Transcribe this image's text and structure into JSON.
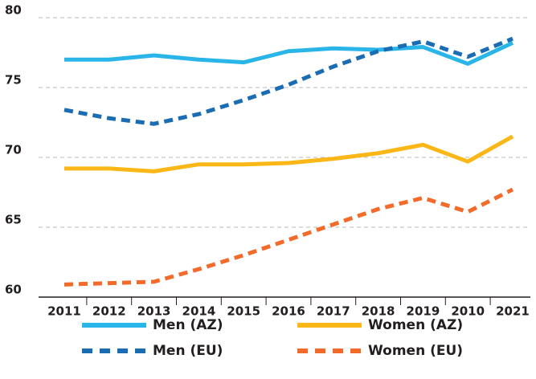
{
  "chart_data": {
    "type": "line",
    "categories": [
      "2011",
      "2012",
      "2013",
      "2014",
      "2015",
      "2016",
      "2017",
      "2018",
      "2019",
      "2010",
      "2021"
    ],
    "series": [
      {
        "name": "Men (AZ)",
        "color": "#29b5e8",
        "dashed": false,
        "values": [
          77.0,
          77.0,
          77.3,
          77.0,
          76.8,
          77.6,
          77.8,
          77.7,
          77.9,
          76.7,
          78.2
        ]
      },
      {
        "name": "Women (AZ)",
        "color": "#fbb617",
        "dashed": false,
        "values": [
          69.2,
          69.2,
          69.0,
          69.5,
          69.5,
          69.6,
          69.9,
          70.3,
          70.9,
          69.7,
          71.5
        ]
      },
      {
        "name": "Men (EU)",
        "color": "#1b6db3",
        "dashed": true,
        "values": [
          73.4,
          72.8,
          72.4,
          73.1,
          74.1,
          75.2,
          76.5,
          77.6,
          78.3,
          77.2,
          78.5
        ]
      },
      {
        "name": "Women (EU)",
        "color": "#f26b2a",
        "dashed": true,
        "values": [
          60.9,
          61.0,
          61.1,
          62.0,
          63.0,
          64.1,
          65.2,
          66.3,
          67.1,
          66.1,
          67.7
        ]
      }
    ],
    "ylim": [
      60,
      80
    ],
    "yticks": [
      60,
      65,
      70,
      75,
      80
    ],
    "grid": true,
    "legend": "bottom"
  }
}
